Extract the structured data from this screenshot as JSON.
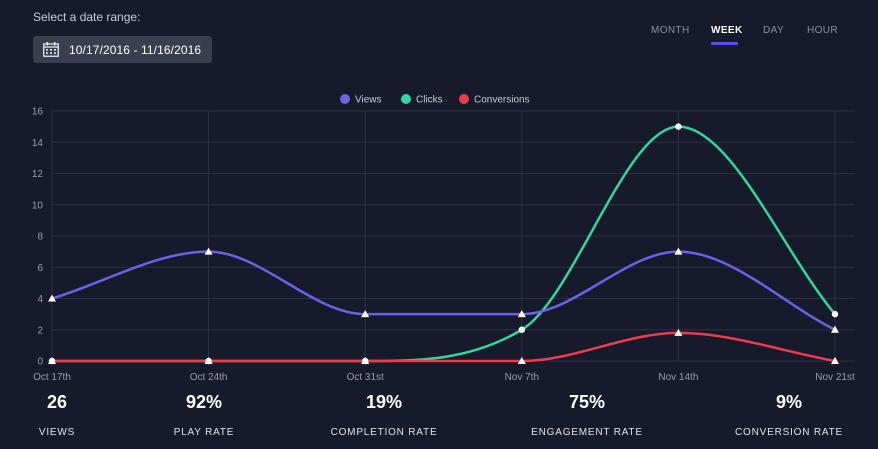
{
  "header": {
    "range_label": "Select a date range:",
    "date_range": "10/17/2016 - 11/16/2016"
  },
  "tabs": [
    {
      "label": "MONTH",
      "active": false
    },
    {
      "label": "WEEK",
      "active": true
    },
    {
      "label": "DAY",
      "active": false
    },
    {
      "label": "HOUR",
      "active": false
    }
  ],
  "colors": {
    "background": "#161a2b",
    "grid": "#2c3042",
    "axis_text": "#9a9caf",
    "accent": "#5a4ff0"
  },
  "chart_data": {
    "type": "line",
    "categories": [
      "Oct 17th",
      "Oct 24th",
      "Oct 31st",
      "Nov 7th",
      "Nov 14th",
      "Nov 21st"
    ],
    "ylim": [
      0,
      16
    ],
    "yticks": [
      0,
      2,
      4,
      6,
      8,
      10,
      12,
      14,
      16
    ],
    "grid": true,
    "legend_position": "top-center",
    "series": [
      {
        "name": "Views",
        "color": "#6a63e8",
        "marker": "triangle",
        "values": [
          4,
          7,
          3,
          3,
          7,
          2
        ]
      },
      {
        "name": "Clicks",
        "color": "#2fd99b",
        "marker": "circle",
        "values": [
          0,
          0,
          0,
          2,
          15,
          3
        ]
      },
      {
        "name": "Conversions",
        "color": "#ee3b4d",
        "marker": "triangle",
        "values": [
          0,
          0,
          0,
          0,
          1.8,
          0
        ]
      }
    ]
  },
  "stats": [
    {
      "value": "26",
      "label": "VIEWS"
    },
    {
      "value": "92%",
      "label": "PLAY RATE"
    },
    {
      "value": "19%",
      "label": "COMPLETION RATE"
    },
    {
      "value": "75%",
      "label": "ENGAGEMENT RATE"
    },
    {
      "value": "9%",
      "label": "CONVERSION RATE"
    }
  ]
}
